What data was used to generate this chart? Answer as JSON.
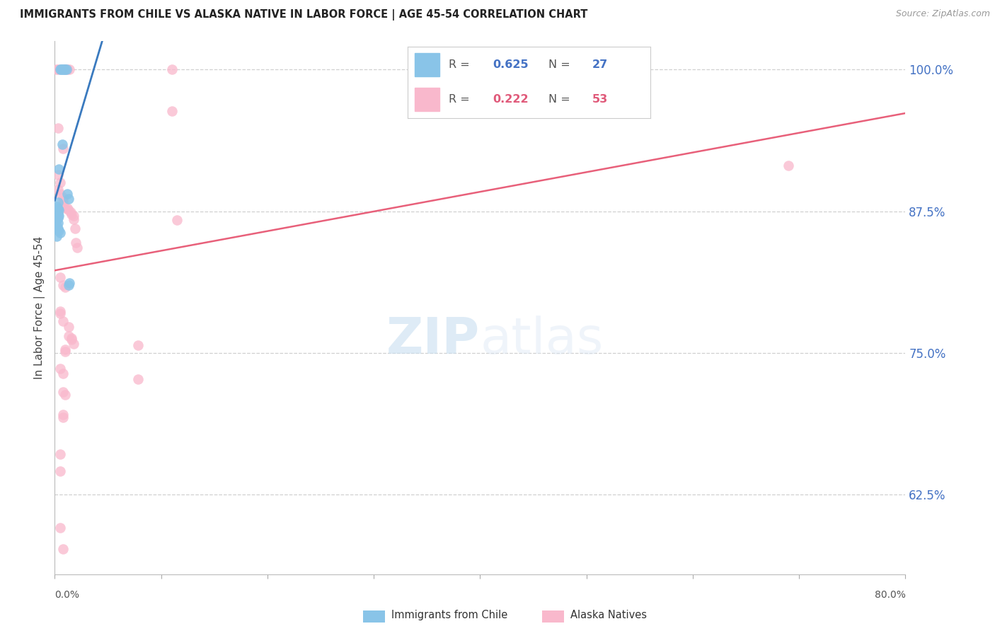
{
  "title": "IMMIGRANTS FROM CHILE VS ALASKA NATIVE IN LABOR FORCE | AGE 45-54 CORRELATION CHART",
  "source": "Source: ZipAtlas.com",
  "ylabel": "In Labor Force | Age 45-54",
  "right_yticks": [
    0.625,
    0.75,
    0.875,
    1.0
  ],
  "xlim": [
    0.0,
    0.8
  ],
  "ylim": [
    0.555,
    1.025
  ],
  "blue_r": "0.625",
  "blue_n": "27",
  "pink_r": "0.222",
  "pink_n": "53",
  "blue_color": "#89c4e8",
  "pink_color": "#f9b8cc",
  "blue_line_color": "#3a7abf",
  "pink_line_color": "#e8607a",
  "blue_scatter": [
    [
      0.005,
      1.0
    ],
    [
      0.006,
      1.0
    ],
    [
      0.007,
      1.0
    ],
    [
      0.008,
      1.0
    ],
    [
      0.009,
      1.0
    ],
    [
      0.01,
      1.0
    ],
    [
      0.011,
      1.0
    ],
    [
      0.007,
      0.934
    ],
    [
      0.004,
      0.912
    ],
    [
      0.012,
      0.89
    ],
    [
      0.013,
      0.886
    ],
    [
      0.003,
      0.883
    ],
    [
      0.002,
      0.879
    ],
    [
      0.003,
      0.877
    ],
    [
      0.004,
      0.876
    ],
    [
      0.003,
      0.873
    ],
    [
      0.004,
      0.871
    ],
    [
      0.003,
      0.869
    ],
    [
      0.002,
      0.867
    ],
    [
      0.003,
      0.865
    ],
    [
      0.002,
      0.862
    ],
    [
      0.003,
      0.86
    ],
    [
      0.004,
      0.858
    ],
    [
      0.005,
      0.856
    ],
    [
      0.002,
      0.853
    ],
    [
      0.014,
      0.812
    ],
    [
      0.013,
      0.81
    ]
  ],
  "pink_scatter": [
    [
      0.002,
      1.0
    ],
    [
      0.003,
      1.0
    ],
    [
      0.01,
      1.0
    ],
    [
      0.012,
      1.0
    ],
    [
      0.014,
      1.0
    ],
    [
      0.11,
      1.0
    ],
    [
      0.11,
      0.963
    ],
    [
      0.003,
      0.948
    ],
    [
      0.008,
      0.93
    ],
    [
      0.003,
      0.907
    ],
    [
      0.005,
      0.9
    ],
    [
      0.003,
      0.894
    ],
    [
      0.005,
      0.89
    ],
    [
      0.008,
      0.887
    ],
    [
      0.008,
      0.884
    ],
    [
      0.008,
      0.88
    ],
    [
      0.01,
      0.878
    ],
    [
      0.012,
      0.878
    ],
    [
      0.013,
      0.876
    ],
    [
      0.015,
      0.874
    ],
    [
      0.016,
      0.872
    ],
    [
      0.018,
      0.871
    ],
    [
      0.018,
      0.868
    ],
    [
      0.115,
      0.867
    ],
    [
      0.019,
      0.86
    ],
    [
      0.02,
      0.847
    ],
    [
      0.021,
      0.843
    ],
    [
      0.005,
      0.817
    ],
    [
      0.008,
      0.81
    ],
    [
      0.01,
      0.808
    ],
    [
      0.005,
      0.787
    ],
    [
      0.005,
      0.785
    ],
    [
      0.008,
      0.778
    ],
    [
      0.013,
      0.773
    ],
    [
      0.013,
      0.765
    ],
    [
      0.016,
      0.763
    ],
    [
      0.016,
      0.762
    ],
    [
      0.018,
      0.758
    ],
    [
      0.078,
      0.757
    ],
    [
      0.01,
      0.753
    ],
    [
      0.01,
      0.751
    ],
    [
      0.005,
      0.736
    ],
    [
      0.008,
      0.732
    ],
    [
      0.078,
      0.727
    ],
    [
      0.008,
      0.716
    ],
    [
      0.01,
      0.713
    ],
    [
      0.008,
      0.696
    ],
    [
      0.008,
      0.693
    ],
    [
      0.69,
      0.915
    ],
    [
      0.005,
      0.661
    ],
    [
      0.005,
      0.646
    ],
    [
      0.005,
      0.596
    ],
    [
      0.008,
      0.577
    ]
  ],
  "watermark_zip": "ZIP",
  "watermark_atlas": "atlas",
  "background_color": "#ffffff",
  "grid_color": "#d0d0d0"
}
